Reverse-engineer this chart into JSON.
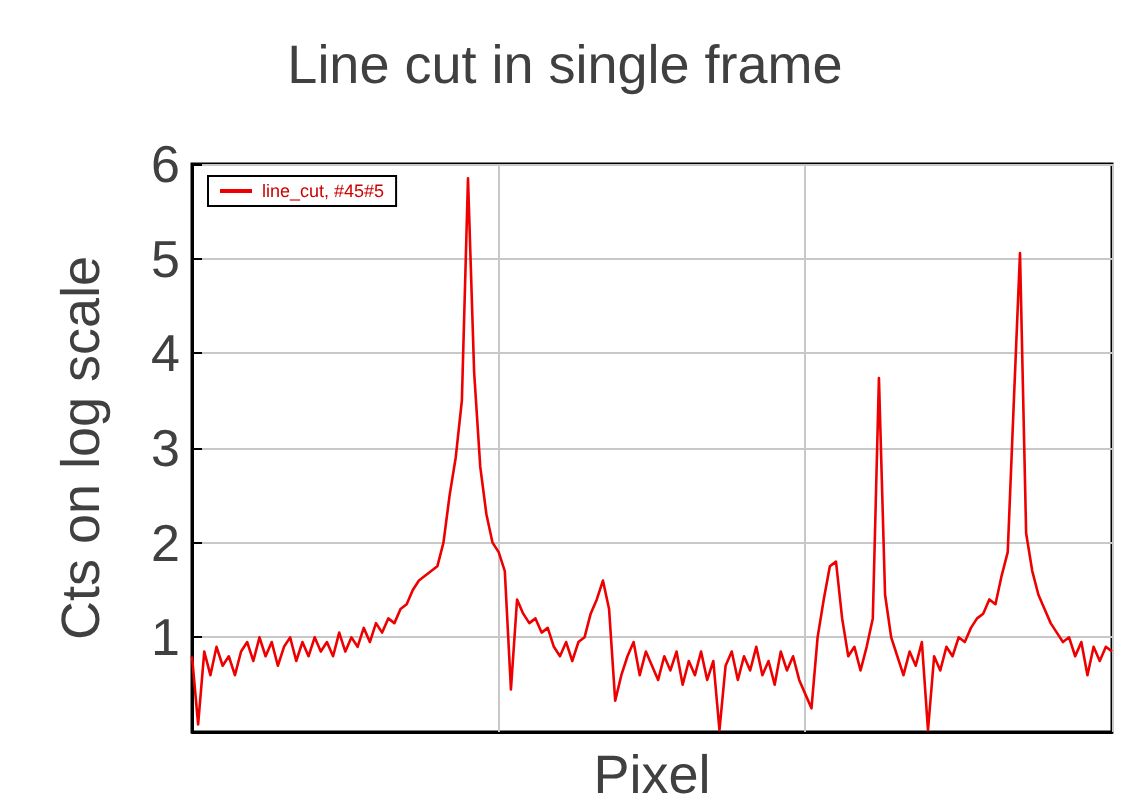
{
  "chart_data": {
    "type": "line",
    "title": "Line cut in single frame",
    "xlabel": "Pixel",
    "ylabel": "Cts on log scale",
    "categories": [
      null,
      null,
      null,
      null,
      null,
      null,
      null,
      null,
      null,
      null,
      null,
      null,
      null,
      null,
      null,
      null,
      null,
      null,
      null,
      null,
      null,
      null,
      null,
      null,
      null,
      null,
      null,
      null,
      null,
      null,
      null,
      null,
      null,
      null,
      null,
      null,
      null,
      null,
      null,
      null,
      null,
      null,
      null,
      null,
      null,
      null,
      null,
      null,
      null,
      null,
      null,
      null,
      null,
      null,
      null,
      null,
      null,
      null,
      null,
      null,
      null,
      null,
      null,
      null,
      null,
      null,
      null,
      null,
      null,
      null,
      null,
      null,
      null,
      null,
      null,
      null,
      null,
      null,
      null,
      null,
      null,
      null,
      null,
      null,
      null,
      null,
      null,
      null,
      null,
      null,
      null,
      null,
      null,
      null,
      null,
      null,
      null,
      null,
      null,
      null,
      null,
      null,
      null,
      null,
      null,
      null,
      null,
      null,
      null,
      null,
      null,
      null,
      null,
      null,
      null,
      null,
      null,
      null,
      null,
      null,
      null,
      null,
      null,
      null,
      null,
      null,
      null,
      null,
      null,
      null,
      null,
      null,
      null,
      null,
      null,
      null,
      null,
      null,
      null,
      null,
      null,
      null,
      null,
      null,
      null,
      null,
      null,
      null,
      null,
      null,
      null
    ],
    "series": [
      {
        "name": "line_cut, #45#5",
        "color": "#ee0000",
        "values": [
          0.8,
          0.08,
          0.85,
          0.6,
          0.9,
          0.7,
          0.8,
          0.6,
          0.85,
          0.95,
          0.75,
          1.0,
          0.8,
          0.95,
          0.7,
          0.9,
          1.0,
          0.75,
          0.95,
          0.8,
          1.0,
          0.85,
          0.95,
          0.8,
          1.05,
          0.85,
          1.0,
          0.9,
          1.1,
          0.95,
          1.15,
          1.05,
          1.2,
          1.15,
          1.3,
          1.35,
          1.5,
          1.6,
          1.65,
          1.7,
          1.75,
          2.0,
          2.5,
          2.9,
          3.5,
          5.85,
          3.8,
          2.8,
          2.3,
          2.0,
          1.9,
          1.7,
          0.45,
          1.4,
          1.25,
          1.15,
          1.2,
          1.05,
          1.1,
          0.9,
          0.8,
          0.95,
          0.75,
          0.95,
          1.0,
          1.25,
          1.4,
          1.6,
          1.3,
          0.33,
          0.6,
          0.8,
          0.95,
          0.6,
          0.85,
          0.7,
          0.55,
          0.8,
          0.65,
          0.85,
          0.5,
          0.75,
          0.6,
          0.85,
          0.55,
          0.75,
          0.02,
          0.7,
          0.85,
          0.55,
          0.8,
          0.65,
          0.9,
          0.6,
          0.75,
          0.5,
          0.85,
          0.65,
          0.8,
          0.55,
          0.4,
          0.25,
          1.0,
          1.4,
          1.75,
          1.8,
          1.2,
          0.8,
          0.9,
          0.65,
          0.9,
          1.2,
          3.74,
          1.45,
          1.0,
          0.8,
          0.6,
          0.85,
          0.7,
          0.95,
          0.02,
          0.8,
          0.65,
          0.9,
          0.8,
          1.0,
          0.95,
          1.1,
          1.2,
          1.25,
          1.4,
          1.35,
          1.65,
          1.9,
          3.5,
          5.06,
          2.1,
          1.7,
          1.45,
          1.3,
          1.15,
          1.05,
          0.95,
          1.0,
          0.8,
          0.95,
          0.6,
          0.9,
          0.75,
          0.9,
          0.85
        ]
      }
    ],
    "ylim": [
      0,
      6
    ],
    "yticks": [
      1,
      2,
      3,
      4,
      5,
      6
    ],
    "grid": true,
    "legend": "top left",
    "line_style": "solid",
    "tick_labels": "y"
  }
}
